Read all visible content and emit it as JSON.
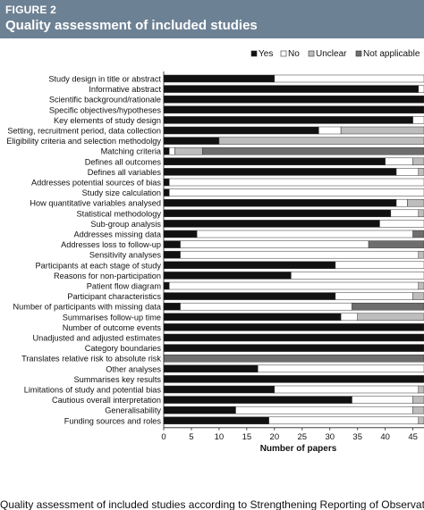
{
  "figure": {
    "label": "FIGURE 2",
    "title": "Quality assessment of included studies",
    "caption": "Quality assessment of included studies according to Strengthening Reporting of Observational"
  },
  "colors": {
    "header_bg": "#6d8194",
    "Yes": "#111111",
    "No": "#ffffff",
    "Unclear": "#bdbdbd",
    "Not applicable": "#6e6e6e",
    "outline": "#333333"
  },
  "chart_data": {
    "type": "bar",
    "orientation": "horizontal",
    "stacked": true,
    "xlabel": "Number of papers",
    "ylabel": "",
    "xlim": [
      0,
      47
    ],
    "xticks": [
      0,
      5,
      10,
      15,
      20,
      25,
      30,
      35,
      40,
      45
    ],
    "grid": false,
    "legend_position": "top-right",
    "categories": [
      "Study design in title or abstract",
      "Informative abstract",
      "Scientific background/rationale",
      "Specific objectives/hypotheses",
      "Key elements of study design",
      "Setting, recruitment period, data collection",
      "Eligibility criteria and selection methodolgy",
      "Matching criteria",
      "Defines all outcomes",
      "Defines all variables",
      "Addresses potential sources of bias",
      "Study size calculation",
      "How quantitative variables analysed",
      "Statistical methodology",
      "Sub-group analysis",
      "Addresses missing data",
      "Addresses loss to follow-up",
      "Sensitivity analyses",
      "Participants at each stage of study",
      "Reasons for non-participation",
      "Patient flow diagram",
      "Participant characteristics",
      "Number of participants with missing data",
      "Summarises follow-up time",
      "Number of outcome events",
      "Unadjusted and adjusted estimates",
      "Category boundaries",
      "Translates relative risk to absolute risk",
      "Other analyses",
      "Summarises key results",
      "Limitations of study and potential bias",
      "Cautious overall interpretation",
      "Generalisability",
      "Funding sources and roles"
    ],
    "series": [
      {
        "name": "Yes",
        "values": [
          20,
          46,
          47,
          47,
          45,
          28,
          10,
          1,
          40,
          42,
          1,
          1,
          42,
          41,
          39,
          6,
          3,
          3,
          31,
          23,
          1,
          31,
          3,
          32,
          47,
          47,
          47,
          0,
          17,
          47,
          20,
          34,
          13,
          19
        ]
      },
      {
        "name": "No",
        "values": [
          27,
          1,
          0,
          0,
          2,
          4,
          0,
          1,
          5,
          4,
          46,
          46,
          2,
          5,
          8,
          39,
          34,
          43,
          16,
          24,
          45,
          14,
          31,
          3,
          0,
          0,
          0,
          0,
          30,
          0,
          26,
          11,
          32,
          27
        ]
      },
      {
        "name": "Unclear",
        "values": [
          0,
          0,
          0,
          0,
          0,
          15,
          37,
          5,
          2,
          1,
          0,
          0,
          3,
          1,
          0,
          0,
          0,
          1,
          0,
          0,
          1,
          2,
          0,
          12,
          0,
          0,
          0,
          0,
          0,
          0,
          1,
          2,
          2,
          1
        ]
      },
      {
        "name": "Not applicable",
        "values": [
          0,
          0,
          0,
          0,
          0,
          0,
          0,
          40,
          0,
          0,
          0,
          0,
          0,
          0,
          0,
          2,
          10,
          0,
          0,
          0,
          0,
          0,
          13,
          0,
          0,
          0,
          0,
          47,
          0,
          0,
          0,
          0,
          0,
          0
        ]
      }
    ]
  }
}
